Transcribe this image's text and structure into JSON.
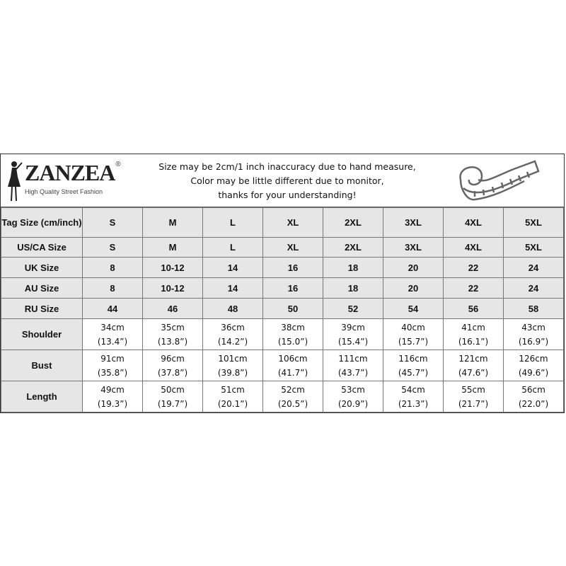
{
  "brand": {
    "name": "ZANZEA",
    "registered": "®",
    "tagline": "High Quality Street Fashion"
  },
  "notice": [
    "Size may be 2cm/1 inch inaccuracy due to hand measure,",
    "Color may be little different due to monitor,",
    "thanks for your understanding!"
  ],
  "icons": {
    "logo": "woman-silhouette-icon",
    "tape": "measuring-tape-icon"
  },
  "colors": {
    "label_bg": "#e6e6e6",
    "border": "#777777"
  },
  "size_rows": [
    {
      "label": "Tag Size (cm/inch)",
      "values": [
        "S",
        "M",
        "L",
        "XL",
        "2XL",
        "3XL",
        "4XL",
        "5XL"
      ]
    },
    {
      "label": "US/CA Size",
      "values": [
        "S",
        "M",
        "L",
        "XL",
        "2XL",
        "3XL",
        "4XL",
        "5XL"
      ]
    },
    {
      "label": "UK Size",
      "values": [
        "8",
        "10-12",
        "14",
        "16",
        "18",
        "20",
        "22",
        "24"
      ]
    },
    {
      "label": "AU Size",
      "values": [
        "8",
        "10-12",
        "14",
        "16",
        "18",
        "20",
        "22",
        "24"
      ]
    },
    {
      "label": "RU Size",
      "values": [
        "44",
        "46",
        "48",
        "50",
        "52",
        "54",
        "56",
        "58"
      ]
    }
  ],
  "measure_rows": [
    {
      "label": "Shoulder",
      "cm": [
        "34cm",
        "35cm",
        "36cm",
        "38cm",
        "39cm",
        "40cm",
        "41cm",
        "43cm"
      ],
      "inch": [
        "(13.4”)",
        "(13.8”)",
        "(14.2”)",
        "(15.0”)",
        "(15.4”)",
        "(15.7”)",
        "(16.1”)",
        "(16.9”)"
      ]
    },
    {
      "label": "Bust",
      "cm": [
        "91cm",
        "96cm",
        "101cm",
        "106cm",
        "111cm",
        "116cm",
        "121cm",
        "126cm"
      ],
      "inch": [
        "(35.8”)",
        "(37.8”)",
        "(39.8”)",
        "(41.7”)",
        "(43.7”)",
        "(45.7”)",
        "(47.6”)",
        "(49.6”)"
      ]
    },
    {
      "label": "Length",
      "cm": [
        "49cm",
        "50cm",
        "51cm",
        "52cm",
        "53cm",
        "54cm",
        "55cm",
        "56cm"
      ],
      "inch": [
        "(19.3”)",
        "(19.7”)",
        "(20.1”)",
        "(20.5”)",
        "(20.9”)",
        "(21.3”)",
        "(21.7”)",
        "(22.0”)"
      ]
    }
  ]
}
